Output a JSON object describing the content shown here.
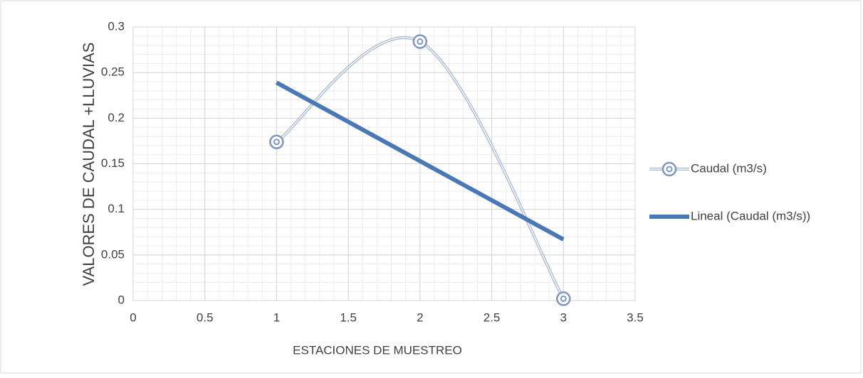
{
  "chart_data": {
    "type": "scatter",
    "x_label": "ESTACIONES DE MUESTREO",
    "y_label": "VALORES DE CAUDAL +LLUVIAS",
    "xlim": [
      0,
      3.5
    ],
    "xticks": [
      0,
      0.5,
      1,
      1.5,
      2,
      2.5,
      3,
      3.5
    ],
    "ylim": [
      0,
      0.3
    ],
    "yticks": [
      0,
      0.05,
      0.1,
      0.15,
      0.2,
      0.25,
      0.3
    ],
    "grid": true,
    "minor_grid": true,
    "legend": "right",
    "series": [
      {
        "name": "Caudal (m3/s)",
        "color": "#7f96bd",
        "smooth": true,
        "markers": true,
        "x": [
          1,
          2,
          3
        ],
        "values": [
          0.174,
          0.284,
          0.002
        ]
      },
      {
        "name": "Lineal (Caudal (m3/s))",
        "color": "#4a78b5",
        "smooth": false,
        "markers": false,
        "x": [
          1,
          3
        ],
        "values": [
          0.239,
          0.067
        ]
      }
    ]
  }
}
